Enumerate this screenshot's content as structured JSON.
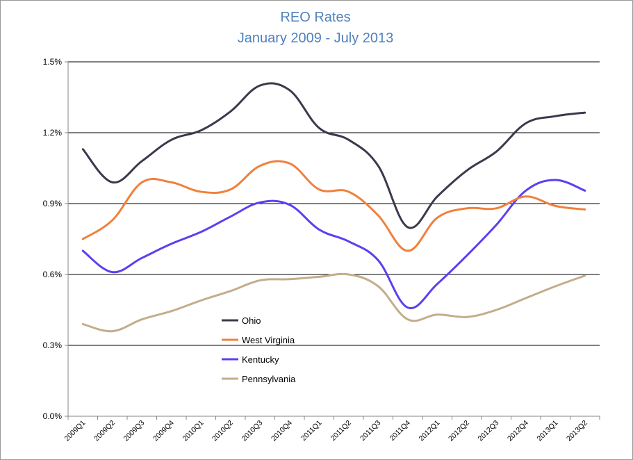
{
  "chart_data": {
    "type": "line",
    "title": "REO Rates",
    "subtitle": "January 2009 - July 2013",
    "xlabel": "",
    "ylabel": "",
    "categories": [
      "2009Q1",
      "2009Q2",
      "2009Q3",
      "2009Q4",
      "2010Q1",
      "2010Q2",
      "2010Q3",
      "2010Q4",
      "2011Q1",
      "2011Q2",
      "2011Q3",
      "2011Q4",
      "2012Q1",
      "2012Q2",
      "2012Q3",
      "2012Q4",
      "2013Q1",
      "2013Q2"
    ],
    "y_ticks": [
      "0.0%",
      "0.3%",
      "0.6%",
      "0.9%",
      "1.2%",
      "1.5%"
    ],
    "ylim": [
      0,
      1.5
    ],
    "grid": true,
    "legend_position": "inside-lower-left",
    "series": [
      {
        "name": "Ohio",
        "color": "#3a3a4c",
        "values": [
          1.13,
          0.99,
          1.08,
          1.17,
          1.21,
          1.29,
          1.4,
          1.38,
          1.22,
          1.17,
          1.06,
          0.8,
          0.93,
          1.04,
          1.12,
          1.24,
          1.27,
          1.285
        ]
      },
      {
        "name": "West Virginia",
        "color": "#f0803c",
        "values": [
          0.75,
          0.83,
          0.99,
          0.99,
          0.95,
          0.96,
          1.06,
          1.07,
          0.96,
          0.95,
          0.85,
          0.7,
          0.84,
          0.88,
          0.88,
          0.93,
          0.89,
          0.875
        ]
      },
      {
        "name": "Kentucky",
        "color": "#5a40f0",
        "values": [
          0.7,
          0.61,
          0.67,
          0.73,
          0.78,
          0.845,
          0.905,
          0.895,
          0.79,
          0.74,
          0.66,
          0.46,
          0.56,
          0.68,
          0.81,
          0.955,
          1.0,
          0.955
        ]
      },
      {
        "name": "Pennsylvania",
        "color": "#c4ad8a",
        "values": [
          0.39,
          0.36,
          0.41,
          0.445,
          0.49,
          0.53,
          0.575,
          0.58,
          0.59,
          0.6,
          0.55,
          0.41,
          0.43,
          0.42,
          0.45,
          0.5,
          0.55,
          0.595
        ]
      }
    ]
  }
}
